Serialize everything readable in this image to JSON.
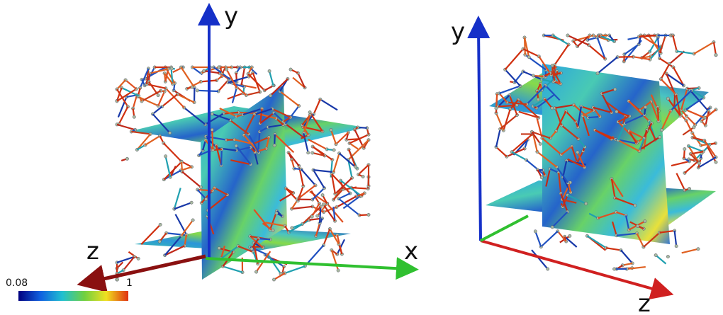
{
  "left_view": {
    "axis_labels": {
      "x": "x",
      "y": "y",
      "z": "z"
    }
  },
  "right_view": {
    "axis_labels": {
      "y": "y",
      "z": "z"
    }
  },
  "colorbar": {
    "min_label": "0.08",
    "max_label": "1"
  }
}
